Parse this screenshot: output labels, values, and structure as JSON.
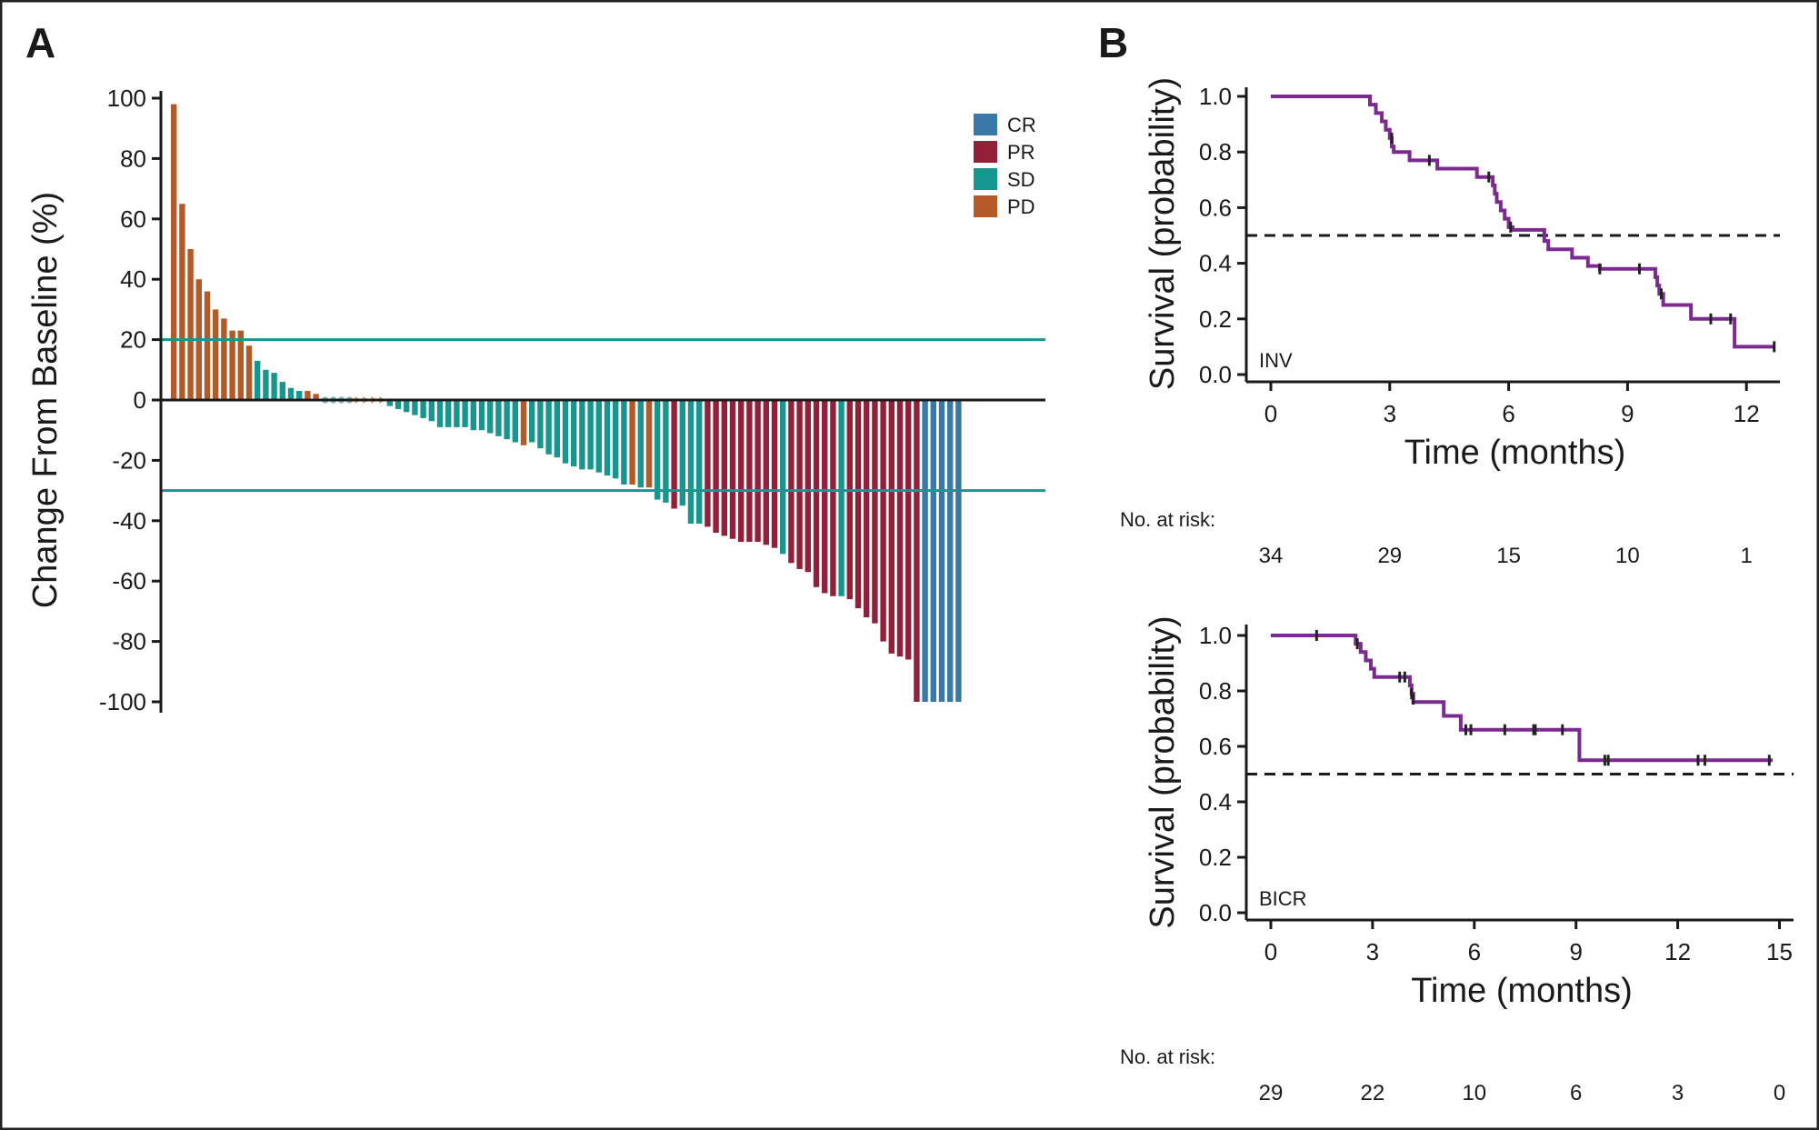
{
  "colors": {
    "CR": "#3a78a8",
    "PR": "#93203a",
    "SD": "#16968f",
    "PD": "#b45a28",
    "km": "#7b2a8f"
  },
  "chart_data": [
    {
      "panel": "A",
      "type": "bar",
      "ylabel": "Change From Baseline (%)",
      "xlabel": "",
      "ylim": [
        -100,
        100
      ],
      "yticks": [
        "100",
        "80",
        "60",
        "40",
        "20",
        "0",
        "-20",
        "-40",
        "-60",
        "-80",
        "-100"
      ],
      "thresholds": [
        20,
        -30
      ],
      "legend": [
        "CR",
        "PR",
        "SD",
        "PD"
      ],
      "legend_position": "top-right",
      "zero_markers": [
        "SD",
        "SD",
        "SD",
        "SD",
        "PD",
        "PD",
        "PD",
        "PD"
      ],
      "bars": [
        {
          "v": 98,
          "r": "PD"
        },
        {
          "v": 65,
          "r": "PD"
        },
        {
          "v": 50,
          "r": "PD"
        },
        {
          "v": 40,
          "r": "PD"
        },
        {
          "v": 36,
          "r": "PD"
        },
        {
          "v": 30,
          "r": "PD"
        },
        {
          "v": 27,
          "r": "PD"
        },
        {
          "v": 23,
          "r": "PD"
        },
        {
          "v": 23,
          "r": "PD"
        },
        {
          "v": 18,
          "r": "PD"
        },
        {
          "v": 13,
          "r": "SD"
        },
        {
          "v": 10,
          "r": "SD"
        },
        {
          "v": 9,
          "r": "SD"
        },
        {
          "v": 6,
          "r": "SD"
        },
        {
          "v": 4,
          "r": "SD"
        },
        {
          "v": 3,
          "r": "SD"
        },
        {
          "v": 3,
          "r": "PD"
        },
        {
          "v": 2,
          "r": "PD"
        },
        {
          "v": -2,
          "r": "SD"
        },
        {
          "v": -3,
          "r": "SD"
        },
        {
          "v": -4,
          "r": "SD"
        },
        {
          "v": -5,
          "r": "SD"
        },
        {
          "v": -6,
          "r": "SD"
        },
        {
          "v": -7,
          "r": "SD"
        },
        {
          "v": -9,
          "r": "SD"
        },
        {
          "v": -9,
          "r": "SD"
        },
        {
          "v": -9,
          "r": "SD"
        },
        {
          "v": -9,
          "r": "SD"
        },
        {
          "v": -10,
          "r": "SD"
        },
        {
          "v": -10,
          "r": "SD"
        },
        {
          "v": -11,
          "r": "SD"
        },
        {
          "v": -12,
          "r": "SD"
        },
        {
          "v": -13,
          "r": "SD"
        },
        {
          "v": -14,
          "r": "SD"
        },
        {
          "v": -15,
          "r": "PD"
        },
        {
          "v": -14,
          "r": "SD"
        },
        {
          "v": -16,
          "r": "SD"
        },
        {
          "v": -18,
          "r": "SD"
        },
        {
          "v": -19,
          "r": "SD"
        },
        {
          "v": -21,
          "r": "SD"
        },
        {
          "v": -22,
          "r": "SD"
        },
        {
          "v": -23,
          "r": "SD"
        },
        {
          "v": -23,
          "r": "SD"
        },
        {
          "v": -24,
          "r": "SD"
        },
        {
          "v": -25,
          "r": "SD"
        },
        {
          "v": -26,
          "r": "SD"
        },
        {
          "v": -28,
          "r": "SD"
        },
        {
          "v": -28,
          "r": "PD"
        },
        {
          "v": -29,
          "r": "SD"
        },
        {
          "v": -29,
          "r": "PD"
        },
        {
          "v": -33,
          "r": "SD"
        },
        {
          "v": -34,
          "r": "SD"
        },
        {
          "v": -36,
          "r": "PR"
        },
        {
          "v": -35,
          "r": "SD"
        },
        {
          "v": -41,
          "r": "SD"
        },
        {
          "v": -41,
          "r": "SD"
        },
        {
          "v": -42,
          "r": "PR"
        },
        {
          "v": -44,
          "r": "PR"
        },
        {
          "v": -45,
          "r": "PR"
        },
        {
          "v": -46,
          "r": "PR"
        },
        {
          "v": -47,
          "r": "PR"
        },
        {
          "v": -47,
          "r": "PR"
        },
        {
          "v": -47,
          "r": "PR"
        },
        {
          "v": -48,
          "r": "PR"
        },
        {
          "v": -49,
          "r": "PR"
        },
        {
          "v": -51,
          "r": "SD"
        },
        {
          "v": -54,
          "r": "PR"
        },
        {
          "v": -56,
          "r": "PR"
        },
        {
          "v": -57,
          "r": "PR"
        },
        {
          "v": -62,
          "r": "PR"
        },
        {
          "v": -64,
          "r": "PR"
        },
        {
          "v": -65,
          "r": "PR"
        },
        {
          "v": -65,
          "r": "SD"
        },
        {
          "v": -66,
          "r": "PR"
        },
        {
          "v": -69,
          "r": "PR"
        },
        {
          "v": -72,
          "r": "PR"
        },
        {
          "v": -74,
          "r": "PR"
        },
        {
          "v": -80,
          "r": "PR"
        },
        {
          "v": -84,
          "r": "PR"
        },
        {
          "v": -85,
          "r": "PR"
        },
        {
          "v": -86,
          "r": "PR"
        },
        {
          "v": -100,
          "r": "PR"
        },
        {
          "v": -100,
          "r": "CR"
        },
        {
          "v": -100,
          "r": "CR"
        },
        {
          "v": -100,
          "r": "CR"
        },
        {
          "v": -100,
          "r": "CR"
        },
        {
          "v": -100,
          "r": "CR"
        }
      ]
    },
    {
      "panel": "B",
      "type": "line",
      "subtype": "kaplan-meier",
      "inset_label": "INV",
      "xlabel": "Time (months)",
      "ylabel": "Survival (probability)",
      "xlim": [
        0,
        12.6
      ],
      "ylim": [
        0,
        1
      ],
      "xticks": [
        "0",
        "3",
        "6",
        "9",
        "12"
      ],
      "yticks": [
        "0.0",
        "0.2",
        "0.4",
        "0.6",
        "0.8",
        "1.0"
      ],
      "median_line": 0.5,
      "steps": [
        [
          0,
          1.0
        ],
        [
          2.5,
          0.97
        ],
        [
          2.65,
          0.94
        ],
        [
          2.8,
          0.91
        ],
        [
          2.9,
          0.88
        ],
        [
          3.0,
          0.85
        ],
        [
          3.05,
          0.82
        ],
        [
          3.1,
          0.8
        ],
        [
          3.5,
          0.77
        ],
        [
          4.2,
          0.74
        ],
        [
          5.2,
          0.71
        ],
        [
          5.6,
          0.68
        ],
        [
          5.65,
          0.65
        ],
        [
          5.7,
          0.62
        ],
        [
          5.8,
          0.59
        ],
        [
          5.9,
          0.56
        ],
        [
          6.0,
          0.53
        ],
        [
          6.1,
          0.52
        ],
        [
          6.9,
          0.48
        ],
        [
          7.0,
          0.45
        ],
        [
          7.6,
          0.42
        ],
        [
          8.0,
          0.39
        ],
        [
          8.3,
          0.38
        ],
        [
          9.7,
          0.35
        ],
        [
          9.75,
          0.32
        ],
        [
          9.8,
          0.29
        ],
        [
          9.9,
          0.25
        ],
        [
          10.6,
          0.2
        ],
        [
          11.7,
          0.1
        ],
        [
          12.7,
          0.1
        ]
      ],
      "censors": [
        [
          3.05,
          0.85
        ],
        [
          4.0,
          0.77
        ],
        [
          5.5,
          0.71
        ],
        [
          6.05,
          0.53
        ],
        [
          8.3,
          0.38
        ],
        [
          9.3,
          0.38
        ],
        [
          9.85,
          0.29
        ],
        [
          11.1,
          0.2
        ],
        [
          11.6,
          0.2
        ],
        [
          12.7,
          0.1
        ]
      ],
      "risk_title": "No. at risk:",
      "risk": [
        "34",
        "29",
        "15",
        "10",
        "1"
      ]
    },
    {
      "panel": "B",
      "type": "line",
      "subtype": "kaplan-meier",
      "inset_label": "BICR",
      "xlabel": "Time (months)",
      "ylabel": "Survival (probability)",
      "xlim": [
        0,
        15
      ],
      "ylim": [
        0,
        1
      ],
      "xticks": [
        "0",
        "3",
        "6",
        "9",
        "12",
        "15"
      ],
      "yticks": [
        "0.0",
        "0.2",
        "0.4",
        "0.6",
        "0.8",
        "1.0"
      ],
      "median_line": 0.5,
      "steps": [
        [
          0,
          1.0
        ],
        [
          2.5,
          0.97
        ],
        [
          2.65,
          0.94
        ],
        [
          2.8,
          0.91
        ],
        [
          2.95,
          0.88
        ],
        [
          3.05,
          0.85
        ],
        [
          4.1,
          0.82
        ],
        [
          4.15,
          0.79
        ],
        [
          4.2,
          0.76
        ],
        [
          5.1,
          0.71
        ],
        [
          5.6,
          0.66
        ],
        [
          9.1,
          0.55
        ],
        [
          14.8,
          0.55
        ]
      ],
      "censors": [
        [
          1.35,
          1.0
        ],
        [
          2.55,
          0.97
        ],
        [
          3.8,
          0.85
        ],
        [
          3.95,
          0.85
        ],
        [
          4.15,
          0.79
        ],
        [
          4.2,
          0.77
        ],
        [
          5.75,
          0.66
        ],
        [
          5.9,
          0.66
        ],
        [
          6.9,
          0.66
        ],
        [
          7.75,
          0.66
        ],
        [
          7.8,
          0.66
        ],
        [
          8.6,
          0.66
        ],
        [
          9.85,
          0.55
        ],
        [
          9.95,
          0.55
        ],
        [
          12.6,
          0.55
        ],
        [
          12.8,
          0.55
        ],
        [
          14.7,
          0.55
        ]
      ],
      "risk_title": "No. at risk:",
      "risk": [
        "29",
        "22",
        "10",
        "6",
        "3",
        "0"
      ]
    }
  ]
}
